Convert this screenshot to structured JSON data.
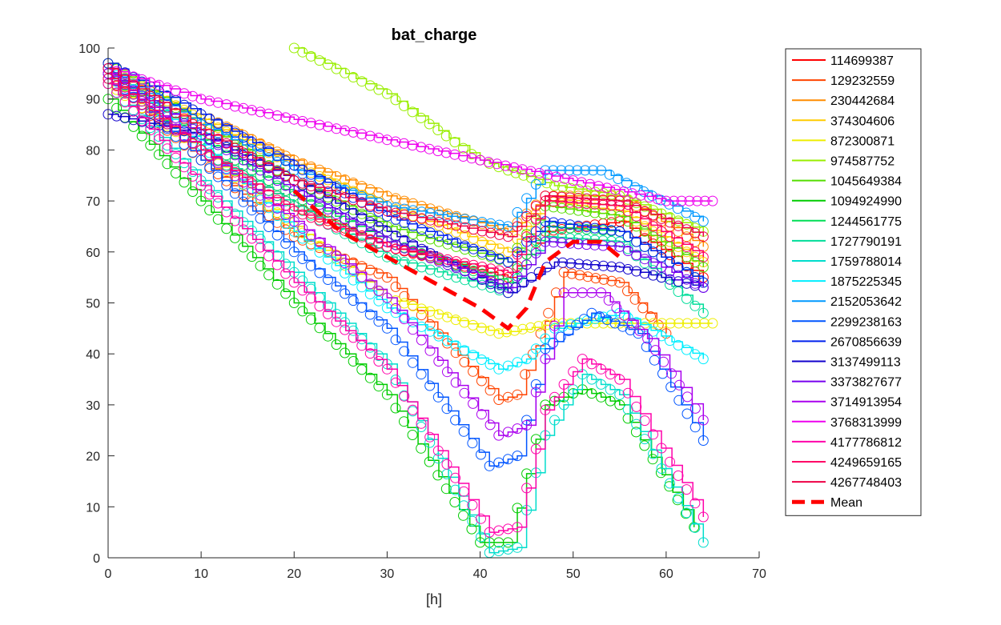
{
  "chart_data": {
    "type": "line",
    "title": "bat_charge",
    "xlabel": "[h]",
    "ylabel": "",
    "xlim": [
      0,
      70
    ],
    "ylim": [
      0,
      100
    ],
    "xticks": [
      0,
      10,
      20,
      30,
      40,
      50,
      60,
      70
    ],
    "yticks": [
      0,
      10,
      20,
      30,
      40,
      50,
      60,
      70,
      80,
      90,
      100
    ],
    "grid": false,
    "legend_position": "outside-right",
    "markers": "open circles on each series",
    "series": [
      {
        "name": "114699387",
        "color": "#ff0000",
        "points": [
          [
            0,
            95
          ],
          [
            10,
            80
          ],
          [
            20,
            69
          ],
          [
            30,
            61
          ],
          [
            43,
            55
          ],
          [
            47,
            64
          ],
          [
            55,
            66
          ],
          [
            64,
            55
          ]
        ]
      },
      {
        "name": "129232559",
        "color": "#ff4400",
        "points": [
          [
            0,
            94
          ],
          [
            10,
            78
          ],
          [
            20,
            63
          ],
          [
            30,
            55
          ],
          [
            42,
            31
          ],
          [
            44,
            32
          ],
          [
            49,
            56
          ],
          [
            55,
            54
          ],
          [
            60,
            44
          ]
        ]
      },
      {
        "name": "230442684",
        "color": "#ff8c00",
        "points": [
          [
            0,
            97
          ],
          [
            10,
            87
          ],
          [
            20,
            78
          ],
          [
            30,
            71
          ],
          [
            43,
            64
          ],
          [
            47,
            71
          ],
          [
            55,
            71
          ],
          [
            64,
            61
          ]
        ]
      },
      {
        "name": "374304606",
        "color": "#ffcc00",
        "points": [
          [
            0,
            96
          ],
          [
            10,
            86
          ],
          [
            20,
            77
          ],
          [
            30,
            69
          ],
          [
            43,
            60
          ],
          [
            47,
            70
          ],
          [
            55,
            68
          ],
          [
            64,
            58
          ]
        ]
      },
      {
        "name": "872300871",
        "color": "#eeee00",
        "points": [
          [
            0,
            93
          ],
          [
            10,
            80
          ],
          [
            20,
            65
          ],
          [
            30,
            51
          ],
          [
            42,
            44
          ],
          [
            48,
            46
          ],
          [
            55,
            46
          ],
          [
            65,
            46
          ]
        ]
      },
      {
        "name": "974587752",
        "color": "#99ee00",
        "points": [
          [
            20,
            100
          ],
          [
            30,
            91
          ],
          [
            40,
            78
          ],
          [
            43,
            76
          ],
          [
            48,
            73
          ],
          [
            55,
            71
          ],
          [
            64,
            64
          ]
        ]
      },
      {
        "name": "1045649384",
        "color": "#55dd00",
        "points": [
          [
            0,
            97
          ],
          [
            10,
            85
          ],
          [
            20,
            74
          ],
          [
            30,
            65
          ],
          [
            43,
            58
          ],
          [
            47,
            69
          ],
          [
            55,
            67
          ],
          [
            64,
            57
          ]
        ]
      },
      {
        "name": "1094924990",
        "color": "#00cc00",
        "points": [
          [
            0,
            90
          ],
          [
            10,
            70
          ],
          [
            20,
            50
          ],
          [
            30,
            32
          ],
          [
            40,
            3
          ],
          [
            43,
            3
          ],
          [
            47,
            30
          ],
          [
            51,
            33
          ],
          [
            55,
            30
          ],
          [
            63,
            6
          ]
        ]
      },
      {
        "name": "1244561775",
        "color": "#00dd55",
        "points": [
          [
            0,
            95
          ],
          [
            10,
            82
          ],
          [
            20,
            71
          ],
          [
            30,
            62
          ],
          [
            43,
            54
          ],
          [
            47,
            65
          ],
          [
            55,
            64
          ],
          [
            64,
            54
          ]
        ]
      },
      {
        "name": "1727790191",
        "color": "#00dd99",
        "points": [
          [
            0,
            94
          ],
          [
            10,
            80
          ],
          [
            20,
            69
          ],
          [
            30,
            59
          ],
          [
            43,
            52
          ],
          [
            47,
            63
          ],
          [
            55,
            62
          ],
          [
            64,
            48
          ]
        ]
      },
      {
        "name": "1759788014",
        "color": "#00ddcc",
        "points": [
          [
            0,
            93
          ],
          [
            10,
            74
          ],
          [
            20,
            56
          ],
          [
            30,
            38
          ],
          [
            41,
            1
          ],
          [
            44,
            2
          ],
          [
            47,
            24
          ],
          [
            51,
            36
          ],
          [
            55,
            32
          ],
          [
            64,
            3
          ]
        ]
      },
      {
        "name": "1875225345",
        "color": "#00eeff",
        "points": [
          [
            0,
            96
          ],
          [
            10,
            81
          ],
          [
            20,
            64
          ],
          [
            30,
            49
          ],
          [
            42,
            37
          ],
          [
            45,
            39
          ],
          [
            48,
            45
          ],
          [
            55,
            48
          ],
          [
            64,
            39
          ]
        ]
      },
      {
        "name": "2152053642",
        "color": "#0099ff",
        "points": [
          [
            0,
            96
          ],
          [
            10,
            85
          ],
          [
            20,
            76
          ],
          [
            30,
            69
          ],
          [
            43,
            65
          ],
          [
            47,
            76
          ],
          [
            53,
            76
          ],
          [
            64,
            66
          ]
        ]
      },
      {
        "name": "2299238163",
        "color": "#0055ff",
        "points": [
          [
            0,
            95
          ],
          [
            10,
            78
          ],
          [
            20,
            60
          ],
          [
            30,
            45
          ],
          [
            41,
            18
          ],
          [
            44,
            20
          ],
          [
            47,
            41
          ],
          [
            52,
            48
          ],
          [
            57,
            44
          ],
          [
            64,
            23
          ]
        ]
      },
      {
        "name": "2670856639",
        "color": "#0022ee",
        "points": [
          [
            0,
            97
          ],
          [
            10,
            87
          ],
          [
            20,
            77
          ],
          [
            30,
            67
          ],
          [
            43,
            58
          ],
          [
            47,
            66
          ],
          [
            55,
            64
          ],
          [
            64,
            54
          ]
        ]
      },
      {
        "name": "3137499113",
        "color": "#1100cc",
        "points": [
          [
            0,
            87
          ],
          [
            10,
            83
          ],
          [
            20,
            74
          ],
          [
            30,
            64
          ],
          [
            43,
            52
          ],
          [
            48,
            58
          ],
          [
            55,
            57
          ],
          [
            64,
            53
          ]
        ]
      },
      {
        "name": "3373827677",
        "color": "#7700ee",
        "points": [
          [
            0,
            95
          ],
          [
            10,
            83
          ],
          [
            20,
            72
          ],
          [
            30,
            62
          ],
          [
            43,
            53
          ],
          [
            47,
            62
          ],
          [
            55,
            61
          ],
          [
            64,
            53
          ]
        ]
      },
      {
        "name": "3714913954",
        "color": "#aa00ee",
        "points": [
          [
            0,
            95
          ],
          [
            10,
            80
          ],
          [
            20,
            66
          ],
          [
            30,
            51
          ],
          [
            42,
            24
          ],
          [
            45,
            26
          ],
          [
            49,
            52
          ],
          [
            53,
            52
          ],
          [
            58,
            43
          ],
          [
            64,
            27
          ]
        ]
      },
      {
        "name": "3768313999",
        "color": "#ee00ee",
        "points": [
          [
            0,
            96
          ],
          [
            10,
            90
          ],
          [
            20,
            86
          ],
          [
            30,
            82
          ],
          [
            40,
            78
          ],
          [
            50,
            74
          ],
          [
            60,
            70
          ],
          [
            65,
            70
          ]
        ]
      },
      {
        "name": "4177786812",
        "color": "#ff00aa",
        "points": [
          [
            0,
            93
          ],
          [
            10,
            73
          ],
          [
            20,
            54
          ],
          [
            30,
            37
          ],
          [
            41,
            5
          ],
          [
            44,
            6
          ],
          [
            47,
            29
          ],
          [
            51,
            39
          ],
          [
            55,
            35
          ],
          [
            64,
            8
          ]
        ]
      },
      {
        "name": "4249659165",
        "color": "#ff0066",
        "points": [
          [
            0,
            94
          ],
          [
            10,
            80
          ],
          [
            20,
            68
          ],
          [
            30,
            61
          ],
          [
            43,
            56
          ],
          [
            47,
            70
          ],
          [
            55,
            69
          ],
          [
            64,
            59
          ]
        ]
      },
      {
        "name": "4267748403",
        "color": "#ee0044",
        "points": [
          [
            0,
            96
          ],
          [
            10,
            84
          ],
          [
            20,
            74
          ],
          [
            30,
            68
          ],
          [
            43,
            63
          ],
          [
            47,
            71
          ],
          [
            55,
            70
          ],
          [
            64,
            63
          ]
        ]
      }
    ],
    "mean": {
      "name": "Mean",
      "color": "#ff0000",
      "points": [
        [
          20,
          72
        ],
        [
          25,
          64
        ],
        [
          30,
          59
        ],
        [
          35,
          54
        ],
        [
          40,
          49
        ],
        [
          43,
          45
        ],
        [
          45,
          49
        ],
        [
          47,
          58
        ],
        [
          50,
          62
        ],
        [
          53,
          62
        ],
        [
          55,
          59
        ]
      ]
    }
  }
}
